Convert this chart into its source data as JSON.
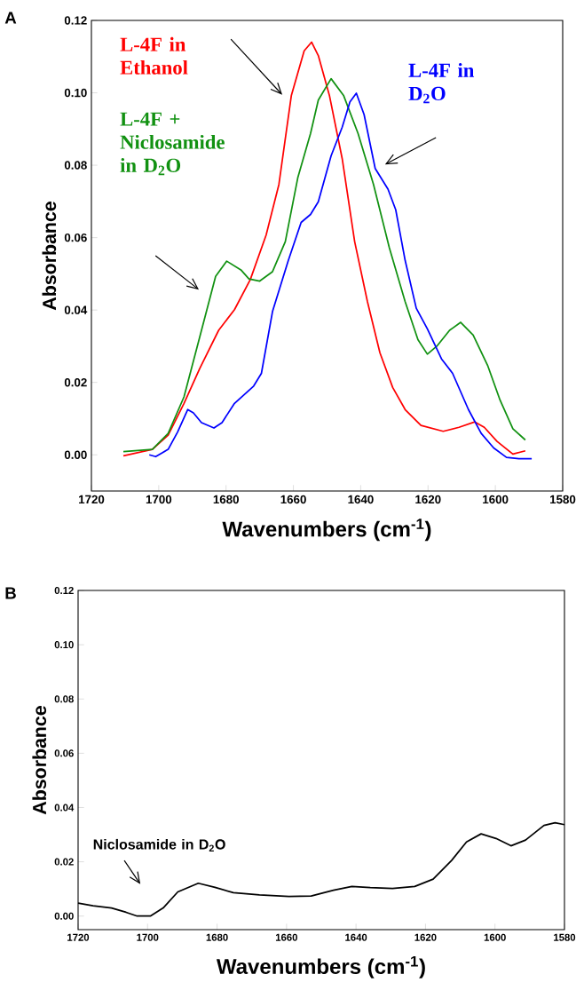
{
  "chart_data": [
    {
      "type": "line",
      "title": "A",
      "xlabel": "Wavenumbers (cm$^{-1}$)",
      "ylabel": "Absorbance",
      "marker": "none",
      "xlim": [
        1720,
        1580
      ],
      "xticks": [
        1720,
        1700,
        1680,
        1660,
        1640,
        1620,
        1600,
        1580
      ],
      "ylim": [
        -0.01,
        0.12
      ],
      "yticks": [
        {
          "value": 0,
          "label": "0.00"
        },
        {
          "value": 0.02,
          "label": "0.02"
        },
        {
          "value": 0.04,
          "label": "0.04"
        },
        {
          "value": 0.06,
          "label": "0.06"
        },
        {
          "value": 0.08,
          "label": "0.08"
        },
        {
          "value": 0.1,
          "label": "0.10"
        },
        {
          "value": 0.12,
          "label": "0.12"
        }
      ],
      "series": [
        {
          "name": "L-4F in Ethanol",
          "color": "#ff0000",
          "x": [
            1710.5,
            1701.9,
            1697.2,
            1692.5,
            1687.8,
            1682.2,
            1677.5,
            1672.8,
            1668.1,
            1664.3,
            1660.6,
            1656.8,
            1654.6,
            1652.6,
            1649.3,
            1645.5,
            1641.8,
            1638.0,
            1634.3,
            1630.5,
            1626.8,
            1622.1,
            1615.5,
            1610.8,
            1606.1,
            1603.3,
            1599.5,
            1594.8,
            1591.1
          ],
          "values": [
            -0.0003,
            0.0015,
            0.0054,
            0.0142,
            0.0239,
            0.0344,
            0.0401,
            0.0484,
            0.0607,
            0.0747,
            0.0993,
            0.1116,
            0.114,
            0.1103,
            0.0993,
            0.0818,
            0.0589,
            0.0423,
            0.0282,
            0.0186,
            0.0125,
            0.0081,
            0.0065,
            0.0076,
            0.0091,
            0.0076,
            0.0037,
            0.0002,
            0.0011
          ]
        },
        {
          "name": "L-4F + Niclosamide in D$_{2}$O",
          "color": "#119111",
          "x": [
            1710.5,
            1701.9,
            1697.2,
            1692.5,
            1687.8,
            1683.1,
            1679.8,
            1675.6,
            1673.2,
            1670.0,
            1666.2,
            1662.4,
            1658.7,
            1654.9,
            1652.6,
            1648.8,
            1645.1,
            1640.8,
            1636.2,
            1631.5,
            1626.8,
            1623.0,
            1620.2,
            1617.4,
            1613.6,
            1610.3,
            1606.6,
            1602.3,
            1598.6,
            1594.8,
            1591.1
          ],
          "values": [
            0.0009,
            0.0015,
            0.0059,
            0.016,
            0.0326,
            0.0493,
            0.0535,
            0.0511,
            0.0486,
            0.048,
            0.0506,
            0.0589,
            0.0765,
            0.0888,
            0.098,
            0.1039,
            0.0993,
            0.0888,
            0.0747,
            0.0572,
            0.0423,
            0.0318,
            0.0278,
            0.03,
            0.0344,
            0.0366,
            0.0331,
            0.0247,
            0.0151,
            0.0072,
            0.0041
          ]
        },
        {
          "name": "L-4F in D$_{2}$O",
          "color": "#0000ff",
          "x": [
            1702.8,
            1700.9,
            1697.2,
            1694.4,
            1691.4,
            1689.7,
            1687.3,
            1683.6,
            1681.2,
            1677.5,
            1671.8,
            1669.5,
            1666.2,
            1661.5,
            1657.7,
            1654.9,
            1652.6,
            1648.8,
            1645.5,
            1643.2,
            1641.3,
            1639.0,
            1635.7,
            1631.9,
            1629.6,
            1626.8,
            1623.5,
            1620.2,
            1616.0,
            1612.7,
            1608.0,
            1604.2,
            1600.5,
            1596.7,
            1593.0,
            1589.2
          ],
          "values": [
            0.0,
            -0.0005,
            0.0015,
            0.0063,
            0.0125,
            0.0116,
            0.0089,
            0.0074,
            0.0089,
            0.0142,
            0.019,
            0.0225,
            0.0396,
            0.0537,
            0.0642,
            0.0664,
            0.0699,
            0.0826,
            0.0905,
            0.0975,
            0.0999,
            0.094,
            0.0791,
            0.0734,
            0.0677,
            0.0537,
            0.0405,
            0.0348,
            0.0265,
            0.0225,
            0.0125,
            0.0059,
            0.0019,
            -0.0007,
            -0.0011,
            -0.0011
          ]
        }
      ]
    },
    {
      "type": "line",
      "title": "B",
      "xlabel": "Wavenumbers (cm$^{-1}$)",
      "ylabel": "Absorbance",
      "marker": "none",
      "xlim": [
        1720,
        1580
      ],
      "xticks": [
        1720,
        1700,
        1680,
        1660,
        1640,
        1620,
        1600,
        1580
      ],
      "ylim": [
        -0.005,
        0.12
      ],
      "yticks": [
        {
          "value": 0,
          "label": "0.00"
        },
        {
          "value": 0.02,
          "label": "0.02"
        },
        {
          "value": 0.04,
          "label": "0.04"
        },
        {
          "value": 0.06,
          "label": "0.06"
        },
        {
          "value": 0.08,
          "label": "0.08"
        },
        {
          "value": 0.1,
          "label": "0.10"
        },
        {
          "value": 0.12,
          "label": "0.12"
        }
      ],
      "series": [
        {
          "name": "Niclosamide in D$_{2}$O",
          "color": "#000000",
          "x": [
            1720,
            1715.7,
            1710.4,
            1706.2,
            1703.0,
            1699.2,
            1695.5,
            1691.3,
            1685.4,
            1680.6,
            1675.3,
            1667.8,
            1659.3,
            1652.9,
            1646.5,
            1641.2,
            1635.9,
            1629.5,
            1623.1,
            1617.8,
            1612.5,
            1608.2,
            1604.0,
            1599.7,
            1595.4,
            1591.2,
            1585.9,
            1582.7,
            1580.0
          ],
          "values": [
            0.0048,
            0.0038,
            0.003,
            0.0014,
            0.0,
            0.0,
            0.003,
            0.0089,
            0.0121,
            0.0106,
            0.0086,
            0.0078,
            0.0072,
            0.0074,
            0.0095,
            0.0109,
            0.0105,
            0.0102,
            0.0109,
            0.0136,
            0.0205,
            0.0273,
            0.0303,
            0.0286,
            0.0259,
            0.028,
            0.0334,
            0.0344,
            0.0337
          ]
        }
      ]
    }
  ]
}
